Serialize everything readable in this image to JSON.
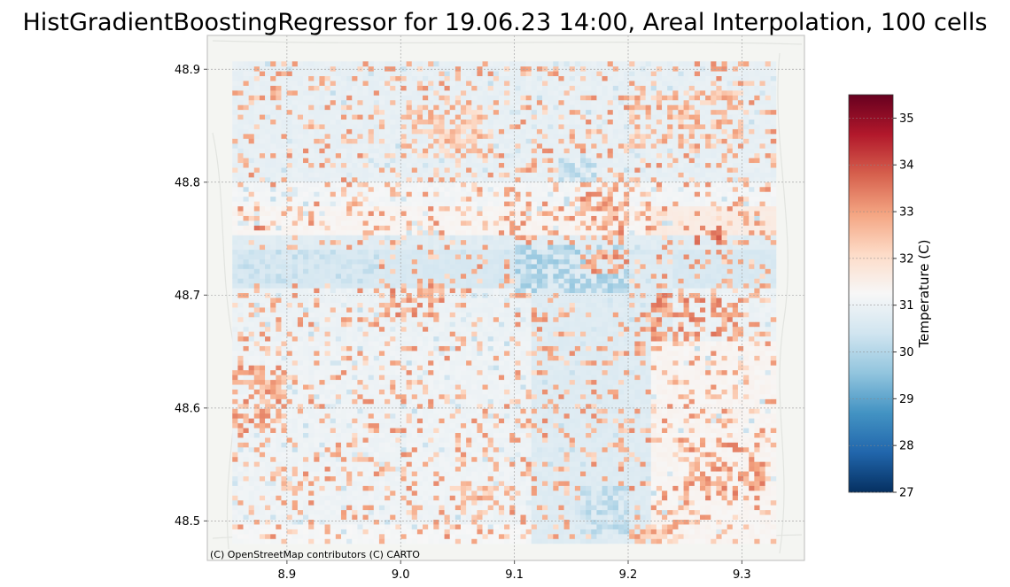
{
  "chart_data": {
    "type": "heatmap",
    "title": "HistGradientBoostingRegressor for 19.06.23 14:00, Areal Interpolation, 100 cells",
    "xlabel": "",
    "ylabel": "",
    "xlim": [
      8.83,
      9.355
    ],
    "ylim": [
      48.465,
      48.93
    ],
    "x_ticks": [
      8.9,
      9.0,
      9.1,
      9.2,
      9.3
    ],
    "x_tick_labels": [
      "8.9",
      "9.0",
      "9.1",
      "9.2",
      "9.3"
    ],
    "y_ticks": [
      48.5,
      48.6,
      48.7,
      48.8,
      48.9
    ],
    "y_tick_labels": [
      "48.5",
      "48.6",
      "48.7",
      "48.8",
      "48.9"
    ],
    "grid": true,
    "basemap_attribution": "(C) OpenStreetMap contributors (C) CARTO",
    "grid_extent": {
      "x": [
        8.852,
        9.33
      ],
      "y": [
        48.48,
        48.907
      ]
    },
    "colorbar": {
      "label": "Temperature (C)",
      "vmin": 27,
      "vmax": 35.5,
      "ticks": [
        27,
        28,
        29,
        30,
        31,
        32,
        33,
        34,
        35
      ],
      "tick_labels": [
        "27",
        "28",
        "29",
        "30",
        "31",
        "32",
        "33",
        "34",
        "35"
      ],
      "colormap": "RdBu_r",
      "colors": [
        "#053061",
        "#2166ac",
        "#4393c3",
        "#92c5de",
        "#d1e5f0",
        "#f7f7f7",
        "#fddbc7",
        "#f4a582",
        "#d6604d",
        "#b2182b",
        "#67001f"
      ]
    },
    "row_bands": [
      {
        "y": [
          48.48,
          48.495
        ],
        "value": 31.2
      },
      {
        "y": [
          48.495,
          48.66
        ],
        "value": 31.05
      },
      {
        "y": [
          48.66,
          48.705
        ],
        "value": 31.0
      },
      {
        "y": [
          48.705,
          48.74
        ],
        "value": 30.55
      },
      {
        "y": [
          48.74,
          48.752
        ],
        "value": 30.75
      },
      {
        "y": [
          48.752,
          48.778
        ],
        "value": 31.35
      },
      {
        "y": [
          48.778,
          48.8
        ],
        "value": 31.15
      },
      {
        "y": [
          48.8,
          48.907
        ],
        "value": 30.9
      }
    ],
    "zones": [
      {
        "x": [
          9.115,
          9.24
        ],
        "y": [
          48.48,
          48.735
        ],
        "value": 30.7
      },
      {
        "x": [
          9.22,
          9.33
        ],
        "y": [
          48.48,
          48.66
        ],
        "value": 31.35
      },
      {
        "x": [
          9.22,
          9.33
        ],
        "y": [
          48.752,
          48.778
        ],
        "value": 31.6
      }
    ],
    "hot_cells": [
      {
        "x": [
          8.852,
          8.9
        ],
        "y": [
          48.58,
          48.64
        ],
        "value": 32.8
      },
      {
        "x": [
          8.98,
          9.04
        ],
        "y": [
          48.68,
          48.71
        ],
        "value": 32.9
      },
      {
        "x": [
          9.05,
          9.1
        ],
        "y": [
          48.51,
          48.53
        ],
        "value": 32.6
      },
      {
        "x": [
          9.16,
          9.2
        ],
        "y": [
          48.72,
          48.8
        ],
        "value": 32.9
      },
      {
        "x": [
          9.22,
          9.3
        ],
        "y": [
          48.66,
          48.7
        ],
        "value": 33.0
      },
      {
        "x": [
          9.25,
          9.32
        ],
        "y": [
          48.52,
          48.57
        ],
        "value": 32.9
      },
      {
        "x": [
          9.2,
          9.3
        ],
        "y": [
          48.83,
          48.88
        ],
        "value": 32.6
      },
      {
        "x": [
          9.0,
          9.08
        ],
        "y": [
          48.82,
          48.87
        ],
        "value": 32.4
      },
      {
        "x": [
          8.868,
          8.88
        ],
        "y": [
          48.75,
          48.76
        ],
        "value": 33.6
      },
      {
        "x": [
          9.26,
          9.28
        ],
        "y": [
          48.745,
          48.76
        ],
        "value": 33.4
      },
      {
        "x": [
          9.2,
          9.25
        ],
        "y": [
          48.48,
          48.5
        ],
        "value": 32.6
      }
    ],
    "cool_cells": [
      {
        "x": [
          9.1,
          9.2
        ],
        "y": [
          48.7,
          48.745
        ],
        "value": 29.9
      },
      {
        "x": [
          8.852,
          8.98
        ],
        "y": [
          48.71,
          48.74
        ],
        "value": 30.4
      },
      {
        "x": [
          9.14,
          9.17
        ],
        "y": [
          48.8,
          48.82
        ],
        "value": 30.2
      },
      {
        "x": [
          9.16,
          9.2
        ],
        "y": [
          48.49,
          48.53
        ],
        "value": 30.2
      }
    ]
  }
}
